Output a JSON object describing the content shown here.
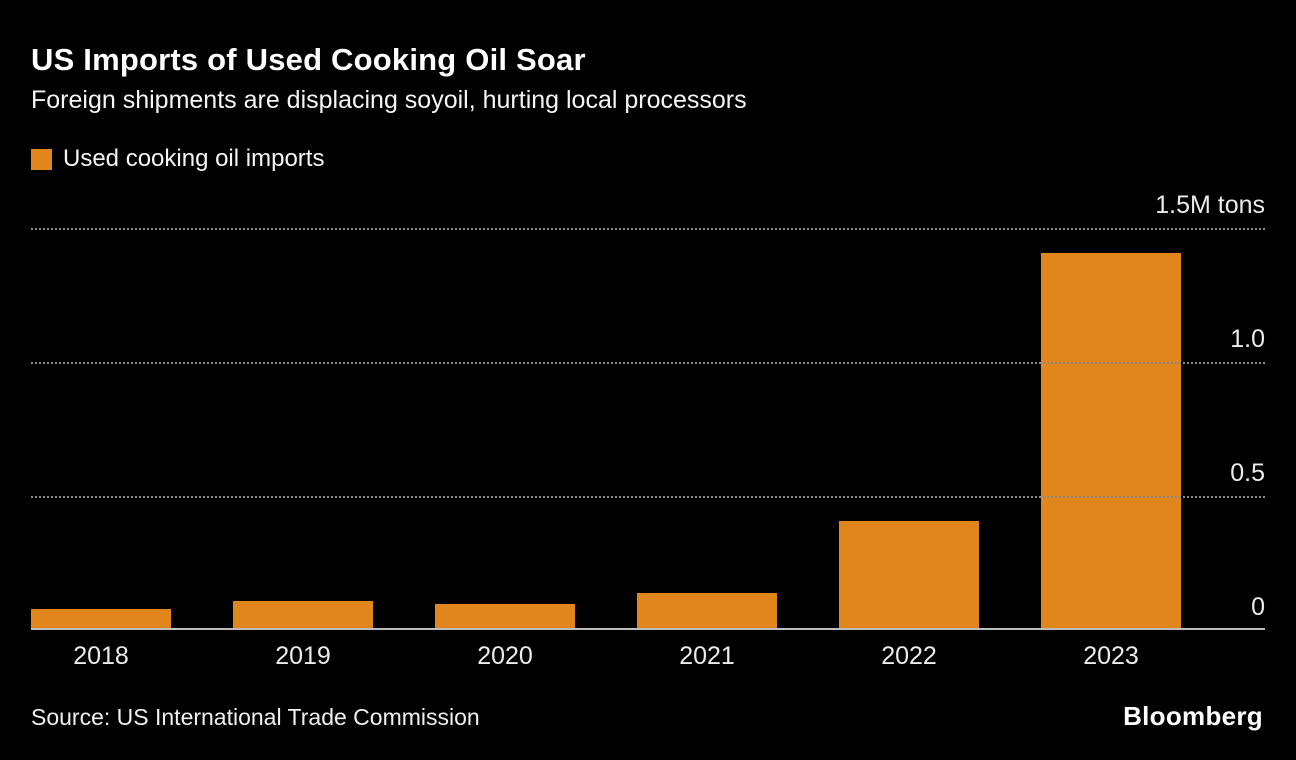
{
  "header": {
    "title": "US Imports of Used Cooking Oil Soar",
    "subtitle": "Foreign shipments are displacing soyoil, hurting local processors"
  },
  "legend": {
    "label": "Used cooking oil imports",
    "color": "#E0861D"
  },
  "chart_data": {
    "type": "bar",
    "categories": [
      "2018",
      "2019",
      "2020",
      "2021",
      "2022",
      "2023"
    ],
    "values": [
      0.07,
      0.1,
      0.09,
      0.13,
      0.4,
      1.4
    ],
    "unit": "M tons",
    "ylim": [
      0,
      1.5
    ],
    "yticks": [
      {
        "value": 1.5,
        "label": "1.5M tons"
      },
      {
        "value": 1.0,
        "label": "1.0"
      },
      {
        "value": 0.5,
        "label": "0.5"
      },
      {
        "value": 0.0,
        "label": "0"
      }
    ],
    "bar_color": "#E0861D",
    "grid": "horizontal-dotted",
    "legend_position": "top-left",
    "axis_side": "right"
  },
  "footer": {
    "source": "Source: US International Trade Commission",
    "brand": "Bloomberg"
  }
}
